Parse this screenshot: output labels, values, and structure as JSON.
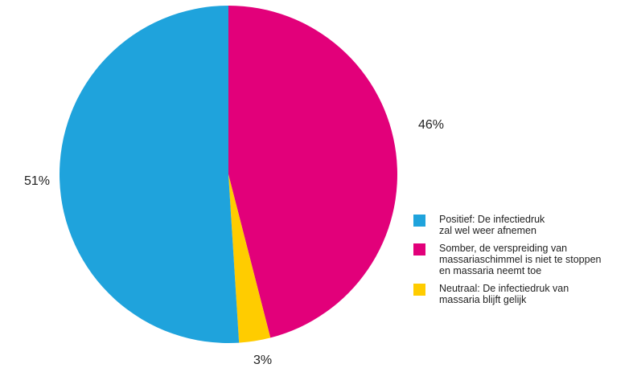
{
  "chart_data": {
    "type": "pie",
    "slices": [
      {
        "label": "Somber, de verspreiding van\nmassariaschimmel is niet te stoppen\nen massaria neemt toe",
        "value": 46,
        "value_label": "46%",
        "color": "#e2007a"
      },
      {
        "label": "Neutraal: De infectiedruk van\nmassaria blijft gelijk",
        "value": 3,
        "value_label": "3%",
        "color": "#ffcc00"
      },
      {
        "label": "Positief: De infectiedruk\nzal wel weer afnemen",
        "value": 51,
        "value_label": "51%",
        "color": "#1fa3dc"
      }
    ],
    "legend_order": [
      2,
      0,
      1
    ],
    "legend_placement": "bottom-right",
    "start": "12 o'clock, clockwise"
  }
}
